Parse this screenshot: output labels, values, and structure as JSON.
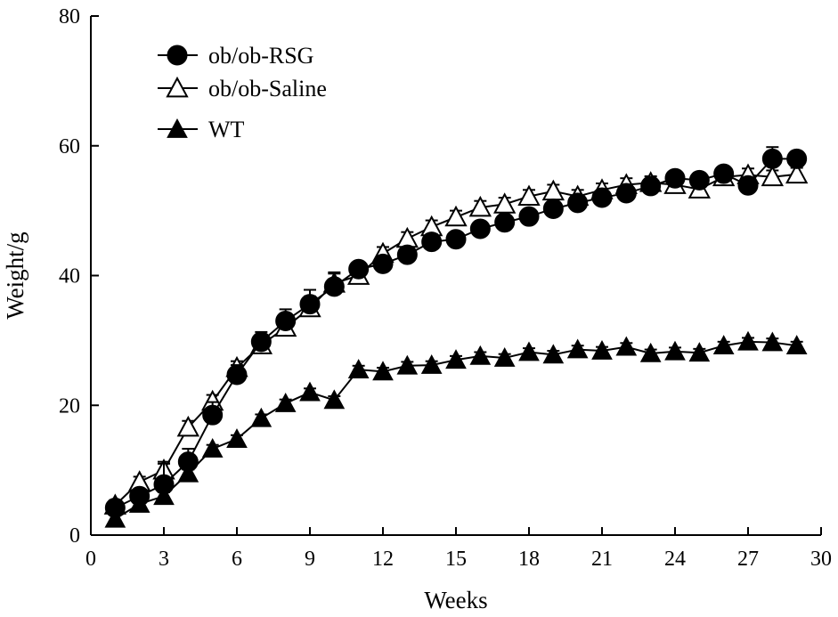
{
  "chart_data": {
    "type": "line",
    "title": "",
    "xlabel": "Weeks",
    "ylabel": "Weight/g",
    "xlim": [
      0,
      30
    ],
    "ylim": [
      0,
      80
    ],
    "xticks": [
      "0",
      "3",
      "6",
      "9",
      "12",
      "15",
      "18",
      "21",
      "24",
      "27",
      "30"
    ],
    "yticks": [
      "0",
      "20",
      "40",
      "60",
      "80"
    ],
    "legend_position": "top-left",
    "x": [
      1,
      2,
      3,
      4,
      5,
      6,
      7,
      8,
      9,
      10,
      11,
      12,
      13,
      14,
      15,
      16,
      17,
      18,
      19,
      20,
      21,
      22,
      23,
      24,
      25,
      26,
      27,
      28,
      29
    ],
    "series": [
      {
        "name": "ob/ob-RSG",
        "marker": "filled-circle",
        "values": [
          4.2,
          6.0,
          7.8,
          11.3,
          18.5,
          24.7,
          29.8,
          33.0,
          35.6,
          38.3,
          41.0,
          41.8,
          43.2,
          45.2,
          45.6,
          47.2,
          48.2,
          49.1,
          50.3,
          51.2,
          52.0,
          52.7,
          53.8,
          55.0,
          54.7,
          55.7,
          53.9,
          58.0,
          58.0
        ],
        "errors": [
          1.0,
          1.0,
          3.5,
          2.0,
          2.0,
          1.5,
          1.5,
          1.8,
          2.2,
          2.2,
          1.0,
          1.0,
          1.0,
          1.2,
          1.0,
          1.0,
          1.0,
          1.0,
          1.0,
          0.8,
          0.8,
          0.8,
          0.8,
          0.8,
          0.8,
          0.8,
          0.8,
          1.8,
          1.0
        ]
      },
      {
        "name": "ob/ob-Saline",
        "marker": "open-triangle",
        "values": [
          4.6,
          8.2,
          10.0,
          16.6,
          20.6,
          25.8,
          29.3,
          32.0,
          35.0,
          38.8,
          40.0,
          43.4,
          45.7,
          47.5,
          49.0,
          50.5,
          51.0,
          52.2,
          53.0,
          52.2,
          53.2,
          54.0,
          54.3,
          54.0,
          53.3,
          55.2,
          55.5,
          55.2,
          55.6
        ],
        "errors": [
          0.8,
          0.8,
          1.0,
          1.0,
          1.0,
          1.0,
          1.0,
          1.5,
          1.8,
          1.5,
          1.0,
          1.0,
          1.0,
          1.0,
          1.0,
          1.0,
          1.0,
          1.0,
          1.0,
          1.0,
          1.0,
          1.0,
          1.0,
          1.0,
          1.0,
          1.0,
          1.0,
          1.0,
          1.0
        ]
      },
      {
        "name": "WT",
        "marker": "filled-triangle",
        "values": [
          2.5,
          4.8,
          6.0,
          9.5,
          13.3,
          14.8,
          18.0,
          20.3,
          22.0,
          20.8,
          25.5,
          25.2,
          26.1,
          26.2,
          27.0,
          27.6,
          27.3,
          28.2,
          27.8,
          28.6,
          28.4,
          29.0,
          28.0,
          28.3,
          28.1,
          29.2,
          29.8,
          29.7,
          29.2
        ],
        "errors": [
          0.6,
          0.6,
          0.6,
          0.6,
          0.6,
          0.6,
          0.6,
          0.6,
          0.6,
          0.6,
          0.6,
          0.6,
          0.6,
          0.6,
          0.6,
          0.6,
          0.6,
          0.6,
          0.6,
          0.6,
          0.6,
          0.6,
          0.6,
          0.6,
          0.6,
          0.6,
          0.6,
          0.6,
          0.6
        ]
      }
    ]
  }
}
